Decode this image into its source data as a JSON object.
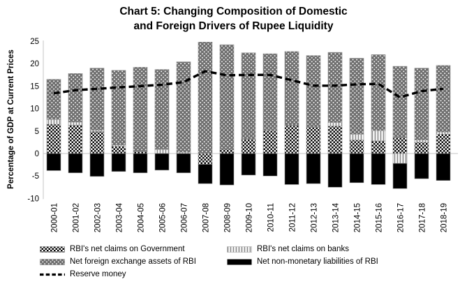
{
  "title": {
    "line1": "Chart 5: Changing Composition of Domestic",
    "line2": "and Foreign Drivers of Rupee Liquidity"
  },
  "chart_data": {
    "type": "bar",
    "subtype": "stacked-bar-with-line-overlay",
    "title": "Chart 5: Changing Composition of Domestic and Foreign Drivers of Rupee Liquidity",
    "xlabel": "",
    "ylabel": "Percentage of GDP at Current Prices",
    "ylim": [
      -10,
      25
    ],
    "yticks": [
      25,
      20,
      15,
      10,
      5,
      0,
      -5,
      -10
    ],
    "grid": "zero-line-only",
    "legend_position": "bottom",
    "categories": [
      "2000-01",
      "2001-02",
      "2002-03",
      "2003-04",
      "2004-05",
      "2005-06",
      "2006-07",
      "2007-08",
      "2008-09",
      "2009-10",
      "2010-11",
      "2011-12",
      "2012-13",
      "2013-14",
      "2014-15",
      "2015-16",
      "2016-17",
      "2017-18",
      "2018-19"
    ],
    "series": [
      {
        "name": "RBI's net claims on Government",
        "pattern": "checker",
        "values": [
          6.5,
          6.3,
          4.9,
          1.6,
          0.5,
          0.0,
          0.0,
          -2.4,
          0.9,
          3.2,
          5.0,
          6.2,
          5.8,
          6.1,
          3.0,
          2.8,
          3.5,
          2.5,
          4.3
        ]
      },
      {
        "name": "RBI's net claims on banks",
        "pattern": "vstripe",
        "values": [
          1.1,
          0.7,
          0.3,
          0.3,
          0.0,
          0.9,
          0.3,
          0.0,
          0.0,
          0.0,
          0.0,
          0.0,
          0.0,
          0.8,
          1.3,
          2.3,
          -2.2,
          0.5,
          0.5
        ]
      },
      {
        "name": "Net foreign exchange assets of RBI",
        "pattern": "dotgrid",
        "values": [
          8.9,
          10.8,
          13.8,
          16.6,
          18.7,
          17.8,
          20.1,
          24.8,
          23.3,
          19.2,
          17.2,
          16.5,
          16.0,
          15.6,
          16.9,
          16.9,
          15.9,
          16.0,
          14.8
        ]
      },
      {
        "name": "Net non-monetary liabilities of RBI",
        "pattern": "solid",
        "values": [
          -3.8,
          -4.3,
          -5.1,
          -4.0,
          -4.3,
          -3.7,
          -4.3,
          -4.3,
          -7.0,
          -4.8,
          -5.0,
          -6.9,
          -6.7,
          -7.5,
          -6.5,
          -6.9,
          -5.6,
          -5.6,
          -6.0
        ]
      }
    ],
    "line_series": {
      "name": "Reserve money",
      "style": "dashed",
      "values": [
        13.4,
        14.1,
        14.4,
        14.7,
        15.0,
        15.3,
        15.9,
        18.3,
        17.4,
        17.5,
        17.5,
        16.3,
        15.1,
        15.1,
        15.4,
        15.5,
        12.5,
        13.9,
        14.4
      ]
    },
    "colors": {
      "black": "#000000",
      "fx_gray": "#6d6d6d",
      "stripe_gray": "#8c8c8c",
      "axis_gray": "#c6c6c6"
    }
  }
}
